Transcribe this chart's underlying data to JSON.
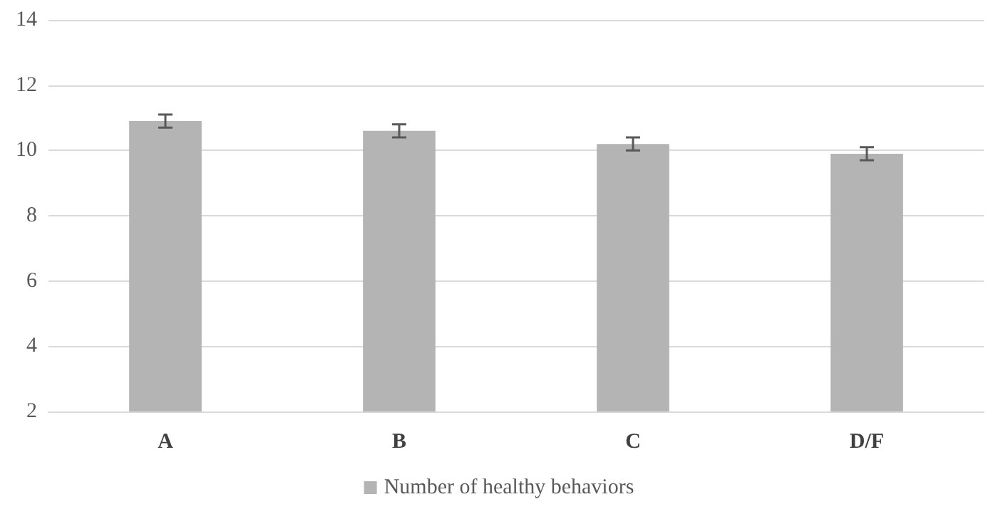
{
  "chart_data": {
    "type": "bar",
    "categories": [
      "A",
      "B",
      "C",
      "D/F"
    ],
    "series": [
      {
        "name": "Number of healthy behaviors",
        "color": "#b4b4b4",
        "values": [
          10.9,
          10.6,
          10.2,
          9.9
        ],
        "errors": [
          0.2,
          0.2,
          0.2,
          0.2
        ]
      }
    ],
    "ylim": [
      2,
      14
    ],
    "yticks": [
      2,
      4,
      6,
      8,
      10,
      12,
      14
    ],
    "grid": "y",
    "legend": "bottom"
  }
}
